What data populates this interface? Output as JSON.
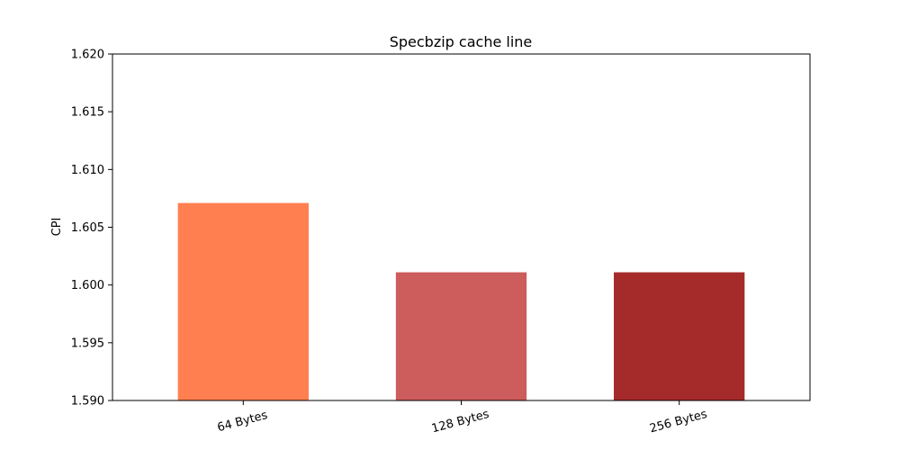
{
  "chart_data": {
    "type": "bar",
    "title": "Specbzip cache line",
    "xlabel": "",
    "ylabel": "CPI",
    "categories": [
      "64 Bytes",
      "128 Bytes",
      "256 Bytes"
    ],
    "values": [
      1.6071,
      1.6011,
      1.6011
    ],
    "colors": [
      "#ff7f50",
      "#cd5c5c",
      "#a52a2a"
    ],
    "ylim": [
      1.59,
      1.62
    ],
    "yticks": [
      1.59,
      1.595,
      1.6,
      1.605,
      1.61,
      1.615,
      1.62
    ],
    "ytick_labels": [
      "1.590",
      "1.595",
      "1.600",
      "1.605",
      "1.610",
      "1.615",
      "1.620"
    ],
    "xtick_rotation_deg": 15,
    "grid": false,
    "legend": "none"
  }
}
